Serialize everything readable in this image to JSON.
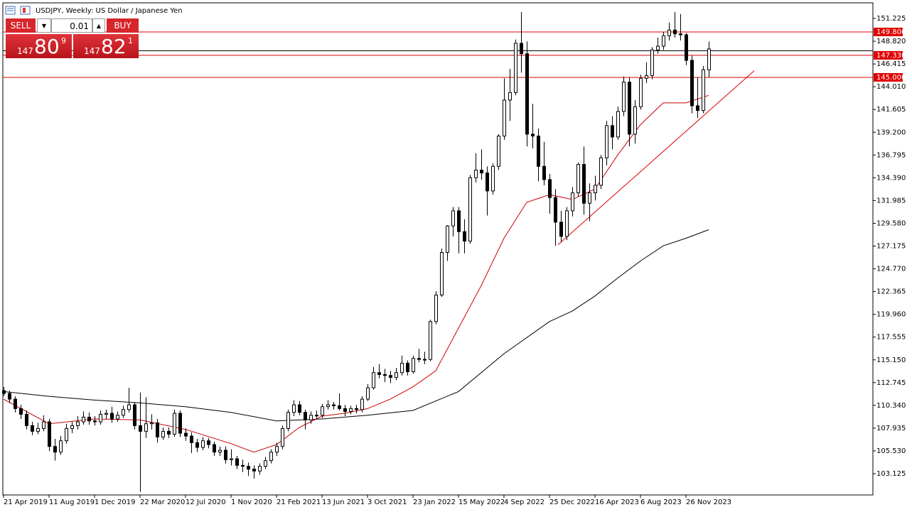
{
  "chart_data": {
    "type": "candlestick",
    "title": "USDJPY, Weekly:  US Dollar / Japanese Yen",
    "ylim": [
      100.874,
      152.876
    ],
    "yticks": [
      151.225,
      {
        "value": 148.82,
        "label": "148.820"
      },
      146.415,
      {
        "value": 144.01,
        "label": "144.010"
      },
      141.605,
      {
        "value": 139.2,
        "label": "139.200"
      },
      136.795,
      {
        "value": 134.39,
        "label": "134.390"
      },
      131.985,
      {
        "value": 129.58,
        "label": "129.580"
      },
      127.175,
      {
        "value": 124.77,
        "label": "124.770"
      },
      122.365,
      {
        "value": 119.96,
        "label": "119.960"
      },
      117.555,
      {
        "value": 115.15,
        "label": "115.150"
      },
      112.745,
      {
        "value": 110.34,
        "label": "110.340"
      },
      107.935,
      {
        "value": 105.53,
        "label": "105.530"
      },
      103.125
    ],
    "xlim": [
      -0.125,
      152.875
    ],
    "xticks": [
      {
        "value": 0,
        "label": "21 Apr 2019"
      },
      {
        "value": 8,
        "label": "11 Aug 2019"
      },
      {
        "value": 16,
        "label": "1 Dec 2019"
      },
      {
        "value": 24,
        "label": "22 Mar 2020"
      },
      {
        "value": 32,
        "label": "12 Jul 2020"
      },
      {
        "value": 40,
        "label": "1 Nov 2020"
      },
      {
        "value": 48,
        "label": "21 Feb 2021"
      },
      {
        "value": 56,
        "label": "13 Jun 2021"
      },
      {
        "value": 64,
        "label": "3 Oct 2021"
      },
      {
        "value": 72,
        "label": "23 Jan 2022"
      },
      {
        "value": 80,
        "label": "15 May 2022"
      },
      {
        "value": 88,
        "label": "4 Sep 2022"
      },
      {
        "value": 96,
        "label": "25 Dec 2022"
      },
      {
        "value": 104,
        "label": "16 Apr 2023"
      },
      {
        "value": 112,
        "label": "6 Aug 2023"
      },
      {
        "value": 120,
        "label": "26 Nov 2023"
      }
    ],
    "ohlc": [
      [
        111.9,
        112.3,
        111.3,
        111.6
      ],
      [
        111.6,
        111.9,
        110.6,
        111.0
      ],
      [
        111.0,
        111.3,
        109.6,
        110.0
      ],
      [
        110.0,
        110.4,
        108.9,
        109.4
      ],
      [
        109.4,
        109.8,
        107.8,
        108.2
      ],
      [
        108.2,
        108.6,
        107.2,
        107.6
      ],
      [
        107.6,
        108.5,
        107.3,
        107.9
      ],
      [
        107.9,
        109.3,
        107.6,
        108.6
      ],
      [
        108.6,
        108.9,
        105.5,
        106.0
      ],
      [
        106.0,
        106.8,
        104.5,
        105.4
      ],
      [
        105.4,
        107.1,
        105.1,
        106.6
      ],
      [
        106.6,
        108.4,
        106.3,
        107.9
      ],
      [
        107.9,
        108.6,
        107.4,
        108.2
      ],
      [
        108.2,
        109.2,
        107.8,
        108.6
      ],
      [
        108.6,
        109.7,
        108.3,
        109.1
      ],
      [
        109.1,
        109.6,
        108.3,
        108.7
      ],
      [
        108.7,
        109.2,
        108.2,
        108.6
      ],
      [
        108.6,
        109.8,
        108.3,
        109.4
      ],
      [
        109.4,
        109.9,
        108.9,
        109.5
      ],
      [
        109.5,
        110.2,
        108.5,
        108.9
      ],
      [
        108.9,
        109.7,
        108.6,
        109.3
      ],
      [
        109.3,
        110.3,
        109.0,
        109.9
      ],
      [
        109.9,
        112.2,
        109.6,
        110.4
      ],
      [
        110.4,
        110.7,
        107.8,
        108.2
      ],
      [
        108.2,
        111.7,
        101.2,
        107.6
      ],
      [
        107.6,
        111.2,
        106.9,
        108.4
      ],
      [
        108.4,
        109.4,
        107.8,
        108.5
      ],
      [
        108.5,
        108.9,
        106.4,
        107.0
      ],
      [
        107.0,
        108.0,
        106.7,
        107.6
      ],
      [
        107.6,
        108.0,
        106.9,
        107.3
      ],
      [
        107.3,
        109.9,
        107.0,
        109.5
      ],
      [
        109.5,
        109.8,
        107.0,
        107.4
      ],
      [
        107.4,
        107.9,
        106.6,
        107.1
      ],
      [
        107.1,
        107.5,
        105.3,
        106.4
      ],
      [
        106.4,
        106.8,
        105.4,
        105.9
      ],
      [
        105.9,
        107.0,
        105.6,
        106.6
      ],
      [
        106.6,
        106.9,
        105.8,
        106.2
      ],
      [
        106.2,
        106.5,
        105.0,
        105.4
      ],
      [
        105.4,
        106.0,
        105.0,
        105.6
      ],
      [
        105.6,
        106.0,
        104.2,
        104.6
      ],
      [
        104.6,
        105.7,
        104.0,
        104.7
      ],
      [
        104.7,
        105.0,
        103.6,
        104.0
      ],
      [
        104.0,
        104.6,
        103.3,
        103.9
      ],
      [
        103.9,
        104.3,
        102.9,
        103.6
      ],
      [
        103.6,
        104.0,
        102.6,
        103.4
      ],
      [
        103.4,
        104.2,
        103.0,
        103.9
      ],
      [
        103.9,
        104.9,
        103.6,
        104.5
      ],
      [
        104.5,
        105.7,
        104.2,
        105.4
      ],
      [
        105.4,
        106.4,
        105.0,
        106.0
      ],
      [
        106.0,
        108.2,
        105.7,
        107.9
      ],
      [
        107.9,
        109.9,
        107.6,
        109.6
      ],
      [
        109.6,
        110.9,
        109.2,
        110.4
      ],
      [
        110.4,
        110.8,
        109.3,
        109.6
      ],
      [
        109.6,
        109.9,
        107.8,
        108.8
      ],
      [
        108.8,
        109.7,
        108.4,
        109.3
      ],
      [
        109.3,
        109.8,
        108.9,
        109.3
      ],
      [
        109.3,
        110.5,
        109.0,
        110.2
      ],
      [
        110.2,
        110.9,
        109.9,
        110.4
      ],
      [
        110.4,
        110.7,
        109.9,
        110.3
      ],
      [
        110.3,
        111.6,
        109.8,
        110.0
      ],
      [
        110.0,
        110.4,
        109.2,
        109.7
      ],
      [
        109.7,
        110.3,
        109.4,
        110.0
      ],
      [
        110.0,
        110.4,
        109.5,
        109.9
      ],
      [
        109.9,
        111.3,
        109.6,
        111.0
      ],
      [
        111.0,
        112.6,
        110.8,
        112.2
      ],
      [
        112.2,
        114.4,
        112.0,
        113.8
      ],
      [
        113.8,
        114.7,
        113.2,
        113.6
      ],
      [
        113.6,
        114.2,
        112.8,
        113.5
      ],
      [
        113.5,
        114.0,
        112.7,
        113.3
      ],
      [
        113.3,
        114.3,
        113.0,
        113.8
      ],
      [
        113.8,
        115.6,
        113.5,
        114.8
      ],
      [
        114.8,
        115.1,
        113.5,
        113.9
      ],
      [
        113.9,
        115.6,
        113.7,
        115.3
      ],
      [
        115.3,
        116.3,
        114.9,
        115.2
      ],
      [
        115.2,
        116.0,
        114.7,
        115.2
      ],
      [
        115.2,
        119.4,
        115.0,
        119.2
      ],
      [
        119.2,
        122.4,
        118.9,
        122.0
      ],
      [
        122.0,
        126.9,
        121.8,
        126.5
      ],
      [
        126.5,
        129.4,
        125.6,
        129.3
      ],
      [
        129.3,
        131.3,
        128.2,
        130.9
      ],
      [
        130.9,
        131.3,
        126.4,
        128.7
      ],
      [
        128.7,
        130.0,
        126.4,
        127.7
      ],
      [
        127.7,
        134.7,
        127.4,
        134.4
      ],
      [
        134.4,
        137.0,
        133.9,
        135.2
      ],
      [
        135.2,
        137.4,
        134.2,
        134.9
      ],
      [
        134.9,
        135.6,
        130.4,
        133.0
      ],
      [
        133.0,
        135.9,
        132.6,
        135.6
      ],
      [
        135.6,
        139.0,
        135.2,
        138.8
      ],
      [
        138.8,
        144.9,
        138.4,
        142.6
      ],
      [
        142.6,
        145.9,
        140.4,
        143.4
      ],
      [
        143.4,
        149.0,
        143.1,
        148.6
      ],
      [
        148.6,
        151.9,
        145.5,
        147.5
      ],
      [
        147.5,
        148.8,
        137.7,
        139.0
      ],
      [
        139.0,
        142.2,
        137.5,
        138.8
      ],
      [
        138.8,
        139.6,
        134.0,
        135.6
      ],
      [
        135.6,
        138.2,
        133.6,
        134.2
      ],
      [
        134.2,
        134.8,
        130.6,
        132.3
      ],
      [
        132.3,
        133.2,
        127.2,
        129.7
      ],
      [
        129.7,
        130.9,
        127.6,
        128.2
      ],
      [
        128.2,
        131.3,
        127.8,
        130.9
      ],
      [
        130.9,
        133.4,
        130.3,
        132.8
      ],
      [
        132.8,
        136.0,
        132.4,
        135.8
      ],
      [
        135.8,
        137.7,
        130.5,
        131.7
      ],
      [
        131.7,
        133.8,
        129.8,
        132.8
      ],
      [
        132.8,
        134.6,
        132.0,
        133.6
      ],
      [
        133.6,
        136.8,
        133.2,
        136.5
      ],
      [
        136.5,
        140.4,
        135.7,
        139.9
      ],
      [
        139.9,
        140.9,
        137.4,
        138.7
      ],
      [
        138.7,
        141.9,
        138.4,
        141.4
      ],
      [
        141.4,
        145.1,
        140.9,
        144.5
      ],
      [
        144.5,
        145.0,
        137.7,
        139.0
      ],
      [
        139.0,
        142.6,
        138.0,
        141.9
      ],
      [
        141.9,
        145.3,
        141.6,
        144.9
      ],
      [
        144.9,
        146.6,
        144.4,
        145.2
      ],
      [
        145.2,
        148.2,
        144.8,
        147.9
      ],
      [
        147.9,
        149.2,
        147.5,
        148.3
      ],
      [
        148.3,
        149.8,
        147.9,
        149.4
      ],
      [
        149.4,
        150.8,
        148.9,
        150.0
      ],
      [
        150.0,
        151.9,
        149.2,
        149.6
      ],
      [
        149.6,
        151.7,
        148.9,
        149.5
      ],
      [
        149.5,
        149.7,
        146.3,
        146.8
      ],
      [
        146.8,
        147.3,
        141.2,
        142.0
      ],
      [
        142.0,
        145.0,
        140.7,
        141.5
      ],
      [
        141.5,
        146.2,
        141.2,
        145.8
      ],
      [
        145.8,
        148.8,
        145.0,
        148.0
      ]
    ],
    "series": [
      {
        "color": "#000000",
        "x": [
          0,
          8,
          16,
          24,
          32,
          40,
          48,
          56,
          64,
          72,
          80,
          88,
          96,
          100,
          104,
          108,
          112,
          116,
          120,
          124
        ],
        "values": [
          111.8,
          111.3,
          110.9,
          110.6,
          110.2,
          109.6,
          108.7,
          108.9,
          109.3,
          109.8,
          111.8,
          115.8,
          119.2,
          120.3,
          121.9,
          123.8,
          125.6,
          127.2,
          128.0,
          128.9
        ]
      },
      {
        "color": "#cc0000",
        "x": [
          0,
          8,
          16,
          24,
          32,
          40,
          44,
          48,
          52,
          56,
          60,
          64,
          68,
          72,
          76,
          80,
          84,
          88,
          92,
          96,
          100,
          104,
          108,
          112,
          116,
          120,
          124
        ],
        "values": [
          111.0,
          108.4,
          108.9,
          108.8,
          107.8,
          106.3,
          105.4,
          106.2,
          108.0,
          109.2,
          109.5,
          110.0,
          111.0,
          112.3,
          114.0,
          118.5,
          123.0,
          128.0,
          131.8,
          132.6,
          132.1,
          133.2,
          136.8,
          140.0,
          142.3,
          142.3,
          143.1
        ]
      }
    ],
    "trendline": {
      "color": "#e00000",
      "x": [
        97.5,
        132
      ],
      "values": [
        127.3,
        145.7
      ]
    },
    "levels": [
      {
        "value": 149.8,
        "label": "149.800"
      },
      {
        "value": 147.33,
        "label": "147.330"
      },
      {
        "value": 145.0,
        "label": "145.000"
      }
    ],
    "level_color": "#e00000",
    "last_price": 147.809
  },
  "trade_panel": {
    "sell": "SELL",
    "lot": "0.01",
    "buy": "BUY",
    "bid": {
      "big": "147",
      "pips": "80",
      "point": "9"
    },
    "ask": {
      "big": "147",
      "pips": "82",
      "point": "1"
    }
  }
}
